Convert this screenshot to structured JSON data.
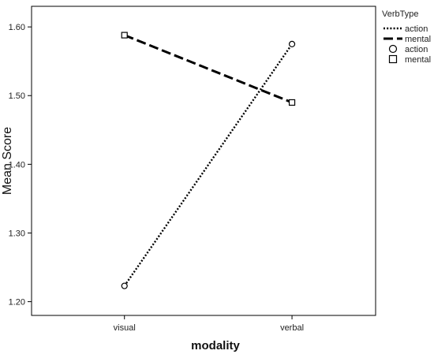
{
  "chart_data": {
    "type": "line",
    "x_label": "modality",
    "y_label": "Mean Score",
    "categories": [
      "visual",
      "verbal"
    ],
    "y_ticks": [
      "1.20",
      "1.30",
      "1.40",
      "1.50",
      "1.60"
    ],
    "ylim": [
      1.18,
      1.63
    ],
    "grid": false,
    "legend_placement": "top-right, outside plot",
    "legend_title": "VerbType",
    "series": [
      {
        "name": "action",
        "values": [
          1.223,
          1.575
        ],
        "line_style": "dotted",
        "marker": "circle",
        "color": "#000000"
      },
      {
        "name": "mental",
        "values": [
          1.588,
          1.49
        ],
        "line_style": "dashed",
        "marker": "square",
        "color": "#000000"
      }
    ]
  }
}
